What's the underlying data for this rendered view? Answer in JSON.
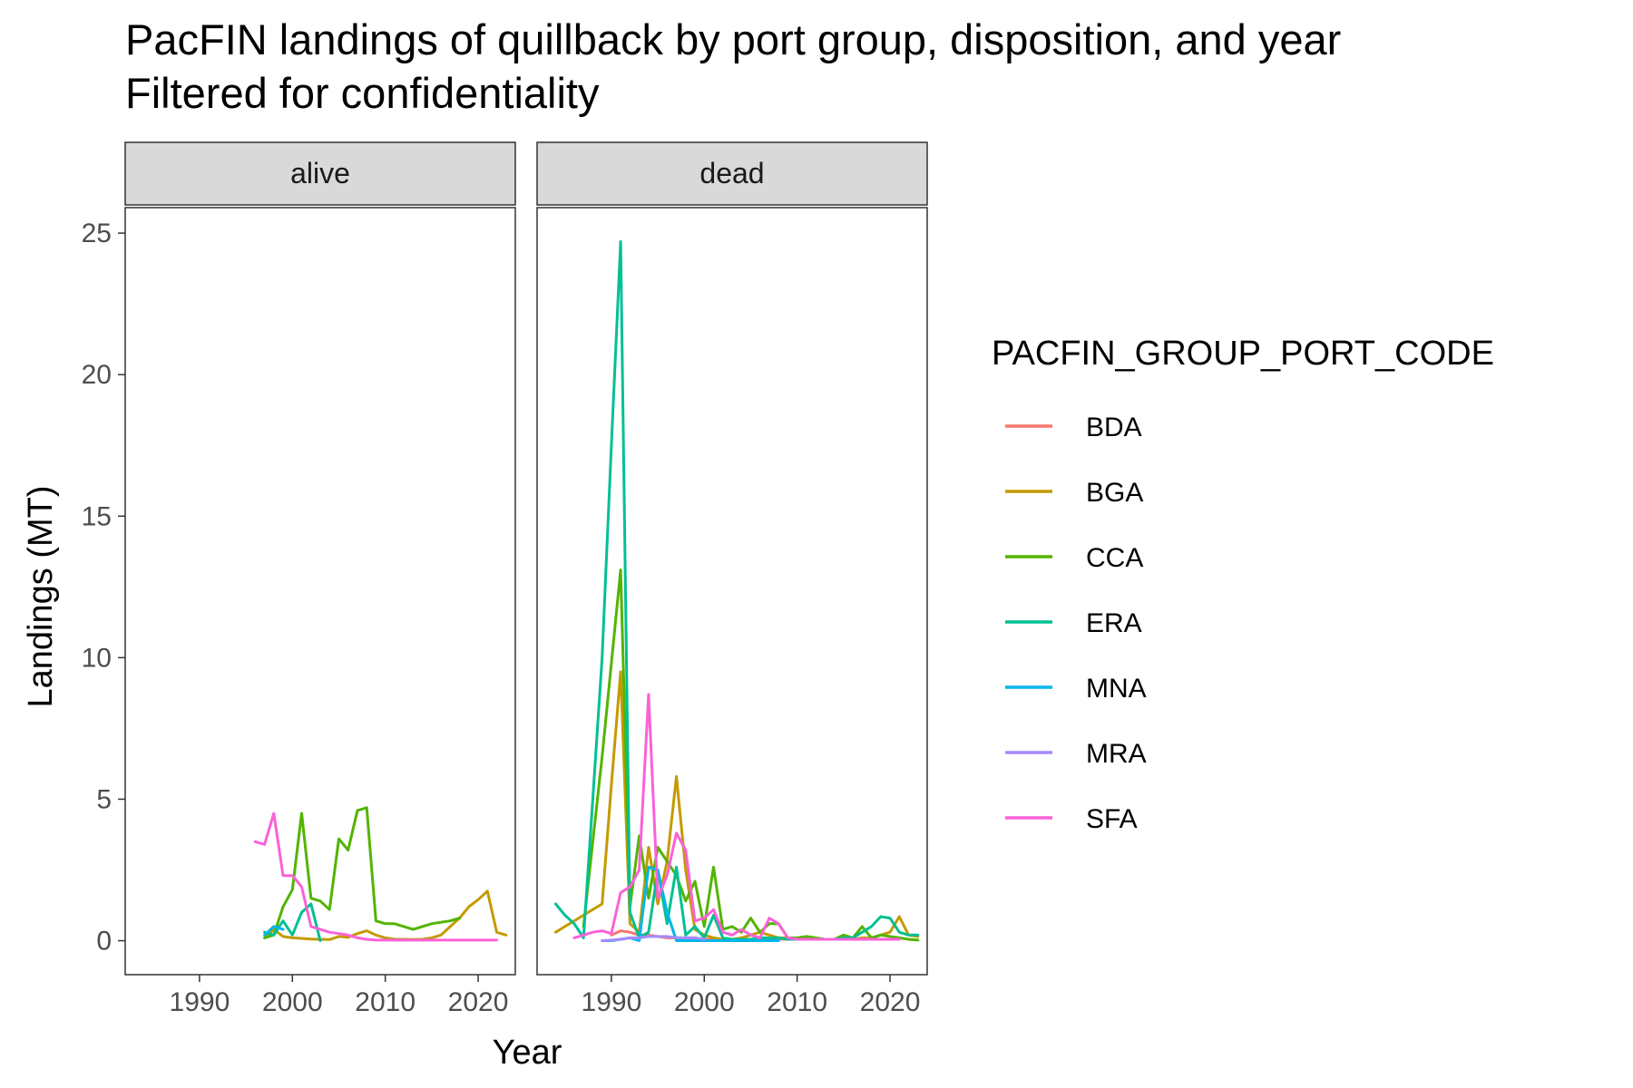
{
  "chart_data": {
    "type": "line",
    "title": "PacFIN landings of quillback by port group, disposition, and year",
    "subtitle": "Filtered for confidentiality",
    "xlabel": "Year",
    "ylabel": "Landings (MT)",
    "xlim": [
      1982,
      2024
    ],
    "ylim": [
      -1.2,
      25.9
    ],
    "x_ticks": [
      1990,
      2000,
      2010,
      2020
    ],
    "y_ticks": [
      0,
      5,
      10,
      15,
      20,
      25
    ],
    "grid": false,
    "legend_title": "PACFIN_GROUP_PORT_CODE",
    "legend_position": "right",
    "series_colors": {
      "BDA": "#F8766D",
      "BGA": "#C49A00",
      "CCA": "#53B400",
      "ERA": "#00C094",
      "MNA": "#00B6EB",
      "MRA": "#A58AFF",
      "SFA": "#FB61D7"
    },
    "panels": [
      {
        "name": "alive",
        "series": [
          {
            "name": "BGA",
            "x": [
              1997,
              1998,
              1999,
              2000,
              2001,
              2002,
              2003,
              2004,
              2005,
              2006,
              2007,
              2008,
              2009,
              2010,
              2011,
              2012,
              2013,
              2014,
              2015,
              2016,
              2017,
              2018,
              2019,
              2020,
              2021,
              2022,
              2023
            ],
            "y": [
              0.1,
              0.4,
              0.15,
              0.1,
              0.08,
              0.06,
              0.05,
              0.04,
              0.15,
              0.12,
              0.25,
              0.35,
              0.2,
              0.1,
              0.05,
              0.05,
              0.04,
              0.05,
              0.1,
              0.2,
              0.5,
              0.8,
              1.2,
              1.45,
              1.75,
              0.3,
              0.2
            ]
          },
          {
            "name": "CCA",
            "x": [
              1997,
              1998,
              1999,
              2000,
              2001,
              2002,
              2003,
              2004,
              2005,
              2006,
              2007,
              2008,
              2009,
              2010,
              2011,
              2012,
              2013,
              2014,
              2015,
              2016,
              2017,
              2018
            ],
            "y": [
              0.1,
              0.2,
              1.2,
              1.8,
              4.5,
              1.5,
              1.4,
              1.1,
              3.6,
              3.2,
              4.6,
              4.7,
              0.7,
              0.6,
              0.6,
              0.5,
              0.4,
              0.5,
              0.6,
              0.65,
              0.7,
              0.8
            ]
          },
          {
            "name": "ERA",
            "x": [
              1997,
              1998,
              1999,
              2000,
              2001,
              2002,
              2003
            ],
            "y": [
              0.3,
              0.2,
              0.7,
              0.2,
              1.0,
              1.3,
              0.0
            ]
          },
          {
            "name": "MNA",
            "x": [
              1997,
              1998,
              1999
            ],
            "y": [
              0.2,
              0.5,
              0.4
            ]
          },
          {
            "name": "SFA",
            "x": [
              1996,
              1997,
              1998,
              1999,
              2000,
              2001,
              2002,
              2003,
              2004,
              2005,
              2006,
              2007,
              2008,
              2009,
              2010,
              2011,
              2012,
              2013,
              2014,
              2015,
              2016,
              2017,
              2018,
              2019,
              2020,
              2021,
              2022
            ],
            "y": [
              3.5,
              3.4,
              4.5,
              2.3,
              2.3,
              1.9,
              0.5,
              0.4,
              0.3,
              0.25,
              0.2,
              0.1,
              0.05,
              0.02,
              0.02,
              0.02,
              0.02,
              0.02,
              0.02,
              0.02,
              0.02,
              0.02,
              0.02,
              0.02,
              0.02,
              0.02,
              0.02
            ]
          }
        ]
      },
      {
        "name": "dead",
        "series": [
          {
            "name": "BDA",
            "x": [
              1990,
              1991,
              1992,
              1993,
              1994,
              1995,
              1996,
              1997,
              1998,
              1999,
              2000,
              2001,
              2002,
              2003,
              2004,
              2005,
              2006,
              2007,
              2008,
              2009,
              2010
            ],
            "y": [
              0.2,
              0.35,
              0.3,
              0.2,
              0.2,
              0.15,
              0.1,
              0.1,
              0.1,
              0.1,
              0.05,
              0.05,
              0.05,
              0.05,
              0.05,
              0.05,
              0.05,
              0.05,
              0.05,
              0.05,
              0.05
            ]
          },
          {
            "name": "BGA",
            "x": [
              1984,
              1985,
              1986,
              1987,
              1988,
              1989,
              1990,
              1991,
              1992,
              1993,
              1994,
              1995,
              1996,
              1997,
              1998,
              1999,
              2000,
              2001,
              2002,
              2003,
              2004,
              2005,
              2006,
              2007,
              2008,
              2009,
              2010,
              2011,
              2012,
              2013,
              2014,
              2015,
              2016,
              2017,
              2018,
              2019,
              2020,
              2021,
              2022,
              2023
            ],
            "y": [
              0.3,
              0.5,
              0.7,
              0.9,
              1.1,
              1.3,
              5.5,
              9.5,
              0.6,
              0.3,
              3.3,
              1.3,
              2.8,
              5.8,
              2.5,
              0.4,
              0.2,
              0.1,
              0.05,
              0.05,
              0.1,
              0.2,
              0.3,
              0.2,
              0.1,
              0.1,
              0.05,
              0.05,
              0.05,
              0.05,
              0.05,
              0.05,
              0.05,
              0.1,
              0.1,
              0.2,
              0.3,
              0.85,
              0.2,
              0.15
            ]
          },
          {
            "name": "CCA",
            "x": [
              1987,
              1988,
              1989,
              1990,
              1991,
              1992,
              1993,
              1994,
              1995,
              1996,
              1997,
              1998,
              1999,
              2000,
              2001,
              2002,
              2003,
              2004,
              2005,
              2006,
              2007,
              2008,
              2009,
              2010,
              2011,
              2012,
              2013,
              2014,
              2015,
              2016,
              2017,
              2018,
              2019,
              2020,
              2021,
              2022,
              2023
            ],
            "y": [
              0.5,
              3.5,
              6.5,
              9.8,
              13.1,
              1.2,
              3.7,
              1.5,
              3.3,
              2.8,
              2.3,
              1.4,
              2.1,
              0.5,
              2.6,
              0.4,
              0.5,
              0.3,
              0.8,
              0.3,
              0.6,
              0.6,
              0.1,
              0.1,
              0.15,
              0.1,
              0.05,
              0.05,
              0.2,
              0.1,
              0.5,
              0.1,
              0.2,
              0.15,
              0.1,
              0.05,
              0.02
            ]
          },
          {
            "name": "ERA",
            "x": [
              1984,
              1985,
              1986,
              1987,
              1988,
              1989,
              1990,
              1991,
              1992,
              1993,
              1994,
              1995,
              1996,
              1997,
              1998,
              1999,
              2000,
              2001,
              2002,
              2003,
              2004,
              2005,
              2006,
              2007,
              2008,
              2009,
              2010,
              2011,
              2012,
              2013,
              2014,
              2015,
              2016,
              2017,
              2018,
              2019,
              2020,
              2021,
              2022,
              2023
            ],
            "y": [
              1.3,
              0.9,
              0.6,
              0.1,
              5.0,
              10.0,
              17.5,
              24.7,
              1.0,
              0.1,
              0.3,
              2.5,
              0.6,
              2.6,
              0.2,
              0.5,
              0.1,
              0.9,
              0.1,
              0.05,
              0.05,
              0.05,
              0.1,
              0.1,
              0.1,
              0.05,
              0.05,
              0.05,
              0.05,
              0.05,
              0.05,
              0.1,
              0.1,
              0.3,
              0.5,
              0.85,
              0.8,
              0.3,
              0.2,
              0.2
            ]
          },
          {
            "name": "MNA",
            "x": [
              1989,
              1990,
              1991,
              1992,
              1993,
              1994,
              1995,
              1996,
              1997,
              1998,
              1999,
              2000,
              2001,
              2002,
              2003,
              2004,
              2005,
              2006,
              2007,
              2008
            ],
            "y": [
              0.0,
              0.0,
              0.05,
              0.1,
              0.0,
              2.6,
              2.5,
              1.0,
              0.0,
              0.0,
              0.0,
              0.0,
              0.0,
              0.0,
              0.0,
              0.0,
              0.0,
              0.0,
              0.0,
              0.0
            ]
          },
          {
            "name": "MRA",
            "x": [
              1989,
              1990,
              1991,
              1992,
              1993,
              1994,
              1995,
              1996,
              1997,
              1998,
              1999,
              2000
            ],
            "y": [
              0.0,
              0.02,
              0.05,
              0.1,
              0.1,
              0.15,
              0.15,
              0.15,
              0.1,
              0.1,
              0.1,
              0.05
            ]
          },
          {
            "name": "SFA",
            "x": [
              1986,
              1987,
              1988,
              1989,
              1990,
              1991,
              1992,
              1993,
              1994,
              1995,
              1996,
              1997,
              1998,
              1999,
              2000,
              2001,
              2002,
              2003,
              2004,
              2005,
              2006,
              2007,
              2008,
              2009,
              2010,
              2011,
              2012,
              2013,
              2014,
              2015,
              2016,
              2017,
              2018,
              2019,
              2020,
              2021
            ],
            "y": [
              0.1,
              0.2,
              0.3,
              0.35,
              0.25,
              1.7,
              1.9,
              2.5,
              8.7,
              1.5,
              2.3,
              3.8,
              3.2,
              0.7,
              0.8,
              1.1,
              0.3,
              0.2,
              0.4,
              0.2,
              0.1,
              0.8,
              0.6,
              0.1,
              0.05,
              0.05,
              0.05,
              0.05,
              0.05,
              0.05,
              0.05,
              0.05,
              0.05,
              0.05,
              0.05,
              0.05
            ]
          }
        ]
      }
    ]
  }
}
